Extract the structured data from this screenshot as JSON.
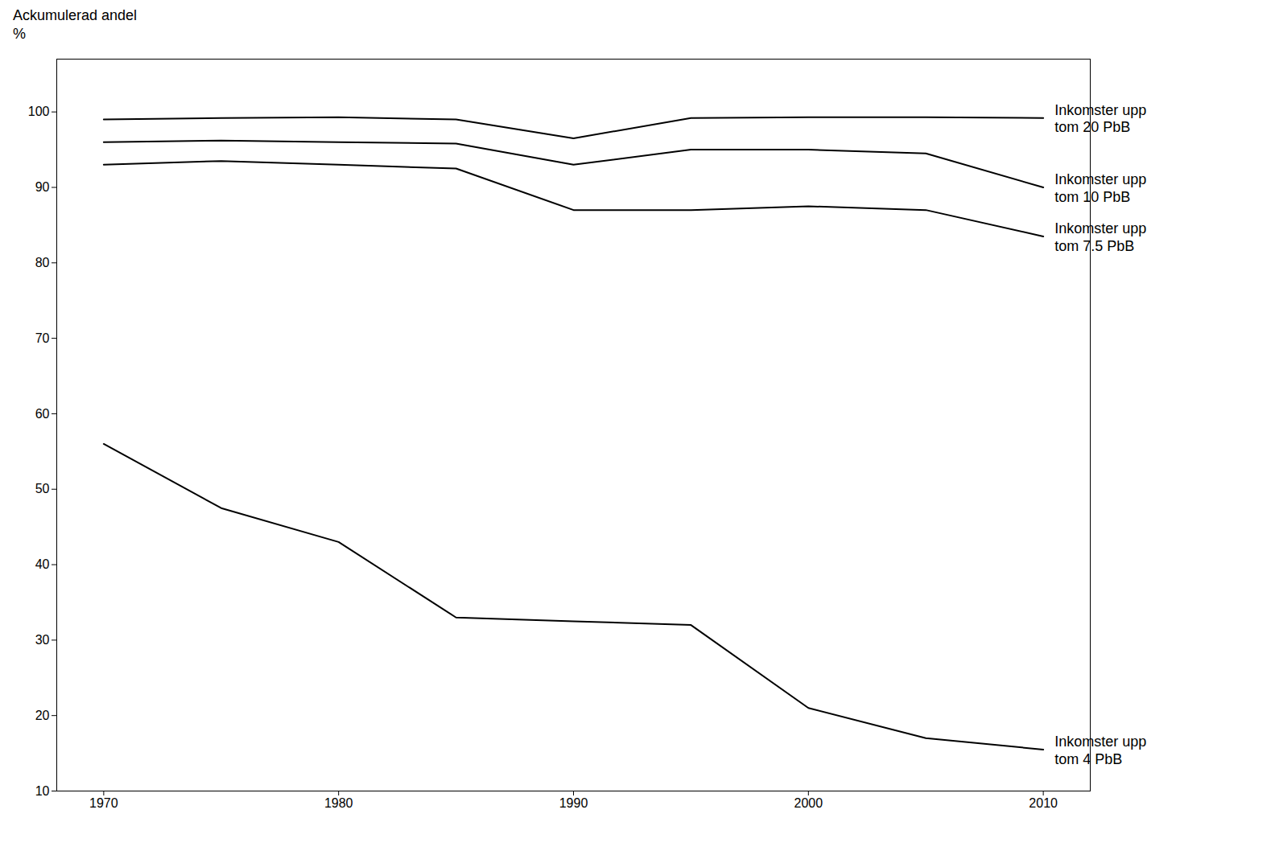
{
  "chart_data": {
    "type": "line",
    "y_label": "Ackumulerad andel\n%",
    "x": [
      1970,
      1975,
      1980,
      1985,
      1990,
      1995,
      2000,
      2005,
      2010
    ],
    "series": [
      {
        "name": "Inkomster upp\ntom 20 PbB",
        "values": [
          99.0,
          99.2,
          99.3,
          99.0,
          96.5,
          99.2,
          99.3,
          99.3,
          99.2
        ]
      },
      {
        "name": "Inkomster upp\ntom 10 PbB",
        "values": [
          96.0,
          96.2,
          96.0,
          95.8,
          93.0,
          95.0,
          95.0,
          94.5,
          90.0
        ]
      },
      {
        "name": "Inkomster upp\ntom 7.5 PbB",
        "values": [
          93.0,
          93.5,
          93.0,
          92.5,
          87.0,
          87.0,
          87.5,
          87.0,
          83.5
        ]
      },
      {
        "name": "Inkomster upp\ntom 4 PbB",
        "values": [
          56.0,
          47.5,
          43.0,
          33.0,
          32.5,
          32.0,
          21.0,
          17.0,
          15.5
        ]
      }
    ],
    "xlim": [
      1968,
      2012
    ],
    "xticks": [
      1970,
      1980,
      1990,
      2000,
      2010
    ],
    "ylim": [
      10,
      107
    ],
    "yticks": [
      10,
      20,
      30,
      40,
      50,
      60,
      70,
      80,
      90,
      100
    ],
    "grid": false
  }
}
